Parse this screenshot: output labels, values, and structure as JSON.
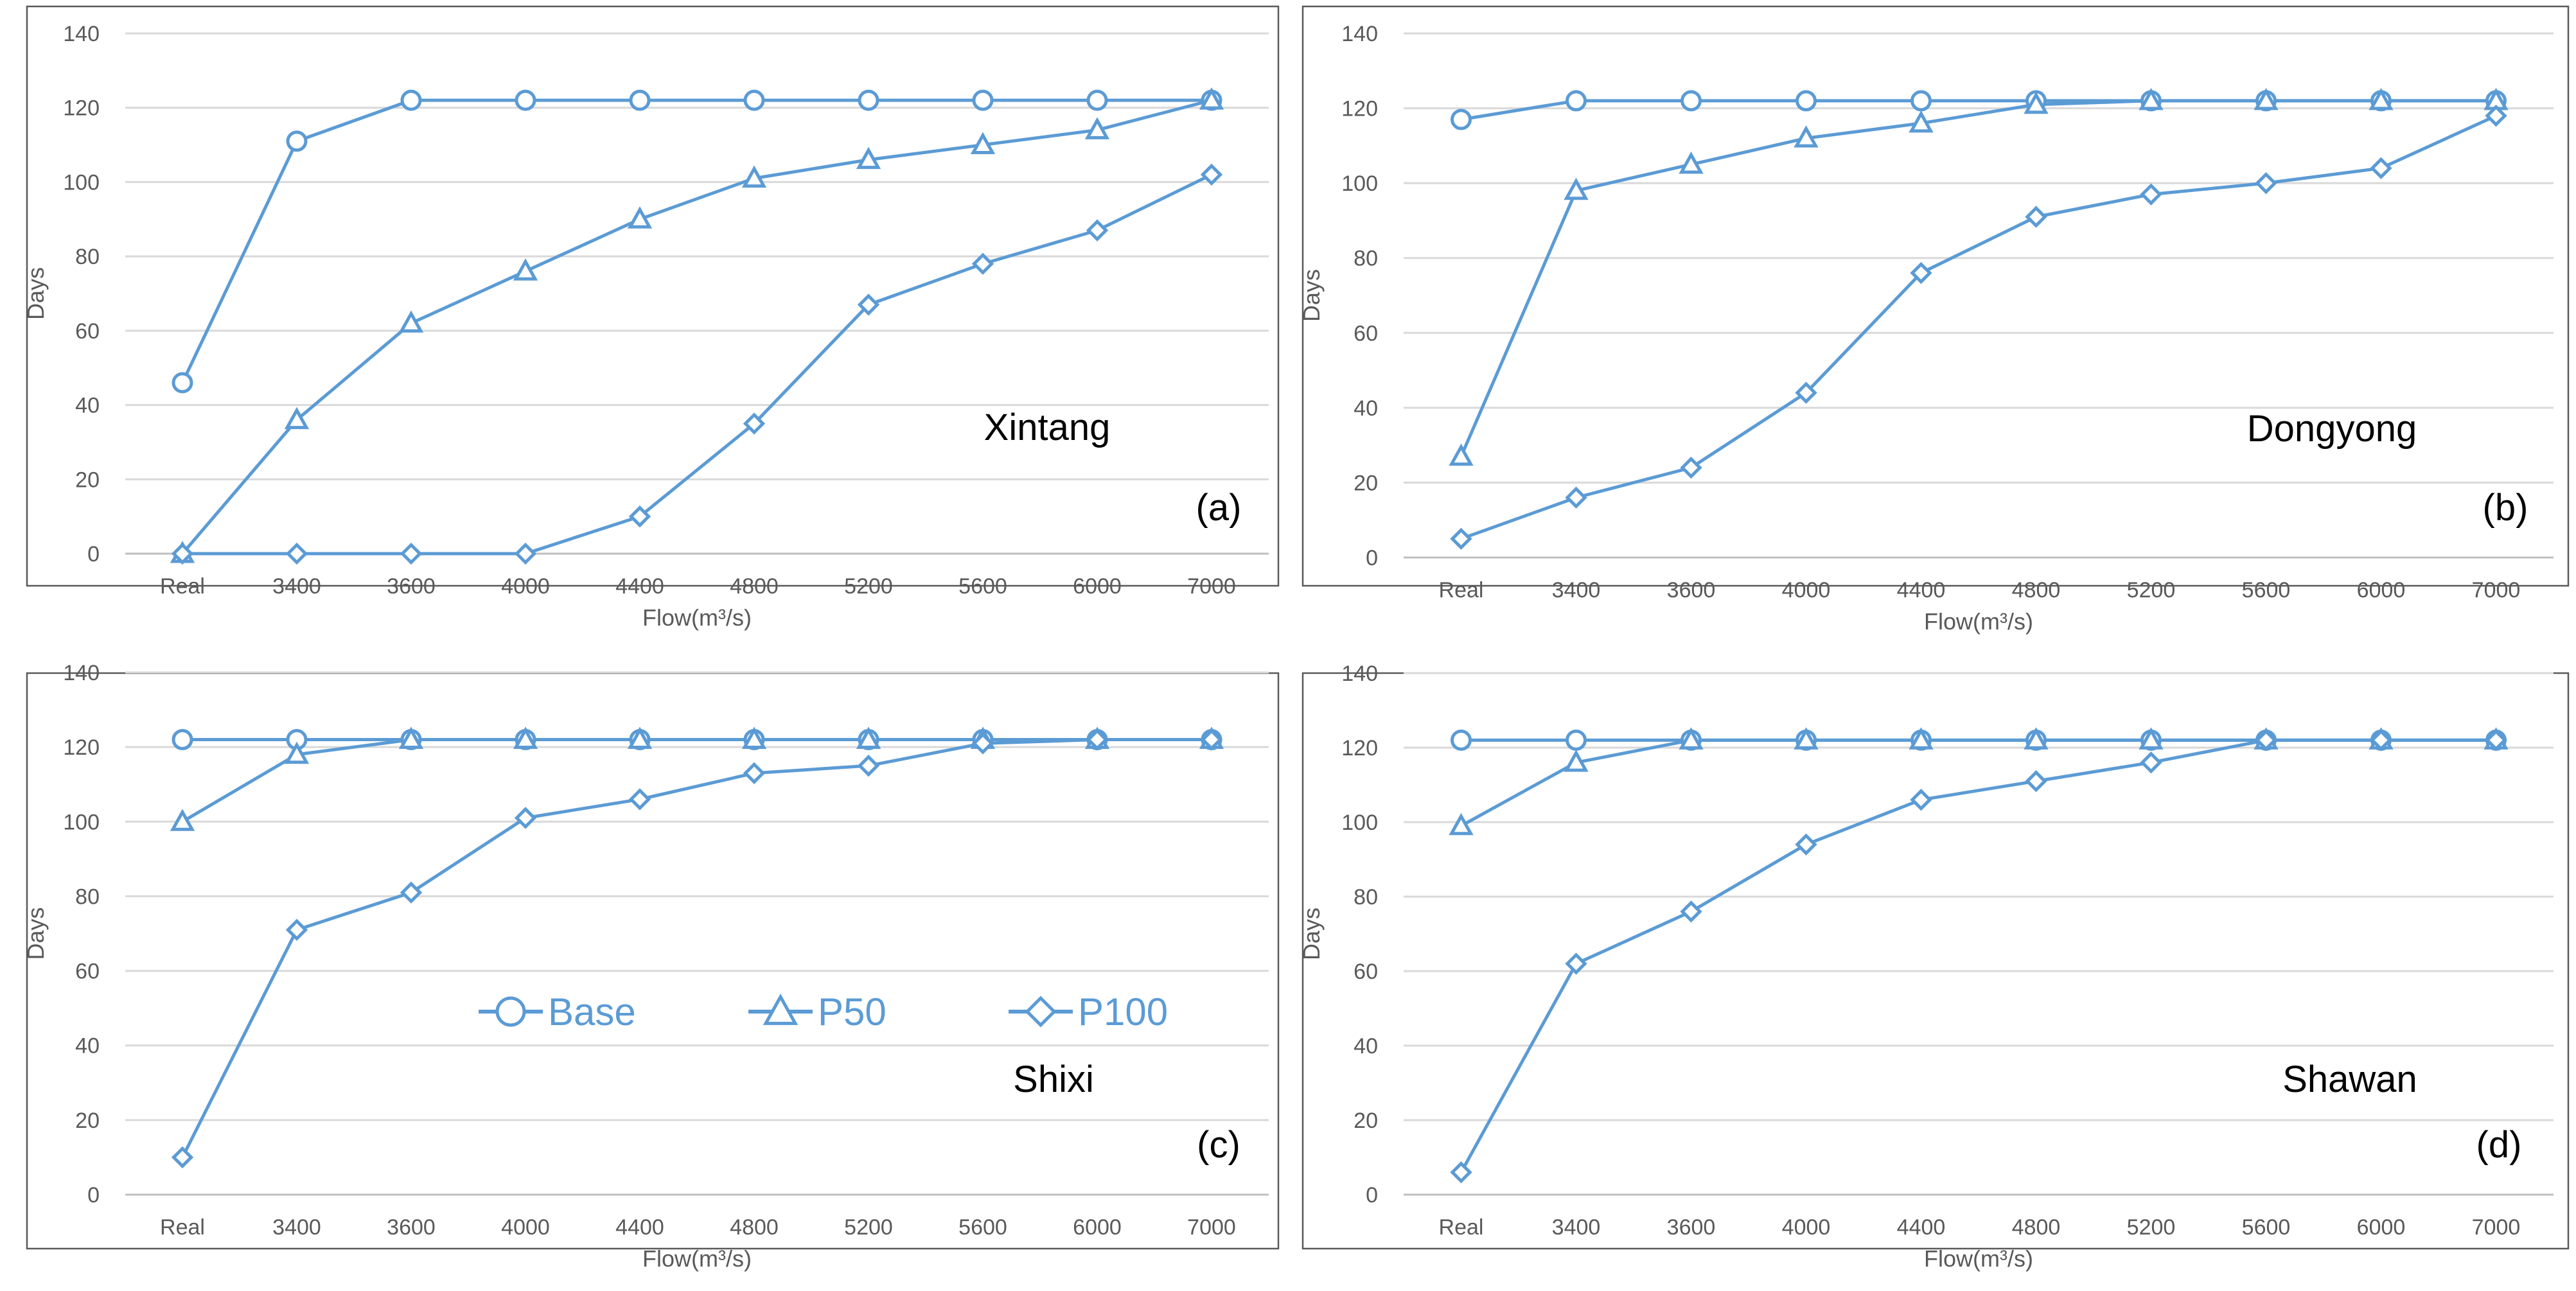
{
  "colors": {
    "series": "#5b9bd5",
    "grid": "#d9d9d9",
    "frame": "#595959",
    "text": "#595959"
  },
  "legend": [
    {
      "name": "Base",
      "marker": "circle"
    },
    {
      "name": "P50",
      "marker": "triangle"
    },
    {
      "name": "P100",
      "marker": "diamond"
    }
  ],
  "chart_data": [
    {
      "type": "line",
      "panel": "(a)",
      "site": "Xintang",
      "categories": [
        "Real",
        "3400",
        "3600",
        "4000",
        "4400",
        "4800",
        "5200",
        "5600",
        "6000",
        "7000"
      ],
      "xlabel": "Flow(m³/s)",
      "ylabel": "Days",
      "ylim": [
        0,
        140
      ],
      "yticks": [
        0,
        20,
        40,
        60,
        80,
        100,
        120,
        140
      ],
      "grid": true,
      "series": [
        {
          "name": "Base",
          "marker": "circle",
          "values": [
            46,
            111,
            122,
            122,
            122,
            122,
            122,
            122,
            122,
            122
          ]
        },
        {
          "name": "P50",
          "marker": "triangle",
          "values": [
            0,
            36,
            62,
            76,
            90,
            101,
            106,
            110,
            114,
            122
          ]
        },
        {
          "name": "P100",
          "marker": "diamond",
          "values": [
            0,
            0,
            0,
            0,
            10,
            35,
            67,
            78,
            87,
            102
          ]
        }
      ]
    },
    {
      "type": "line",
      "panel": "(b)",
      "site": "Dongyong",
      "categories": [
        "Real",
        "3400",
        "3600",
        "4000",
        "4400",
        "4800",
        "5200",
        "5600",
        "6000",
        "7000"
      ],
      "xlabel": "Flow(m³/s)",
      "ylabel": "Days",
      "ylim": [
        0,
        140
      ],
      "yticks": [
        0,
        20,
        40,
        60,
        80,
        100,
        120,
        140
      ],
      "grid": true,
      "series": [
        {
          "name": "Base",
          "marker": "circle",
          "values": [
            117,
            122,
            122,
            122,
            122,
            122,
            122,
            122,
            122,
            122
          ]
        },
        {
          "name": "P50",
          "marker": "triangle",
          "values": [
            27,
            98,
            105,
            112,
            116,
            121,
            122,
            122,
            122,
            122
          ]
        },
        {
          "name": "P100",
          "marker": "diamond",
          "values": [
            5,
            16,
            24,
            44,
            76,
            91,
            97,
            100,
            104,
            118
          ]
        }
      ]
    },
    {
      "type": "line",
      "panel": "(c)",
      "site": "Shixi",
      "categories": [
        "Real",
        "3400",
        "3600",
        "4000",
        "4400",
        "4800",
        "5200",
        "5600",
        "6000",
        "7000"
      ],
      "xlabel": "Flow(m³/s)",
      "ylabel": "Days",
      "ylim": [
        0,
        140
      ],
      "yticks": [
        0,
        20,
        40,
        60,
        80,
        100,
        120,
        140
      ],
      "grid": true,
      "series": [
        {
          "name": "Base",
          "marker": "circle",
          "values": [
            122,
            122,
            122,
            122,
            122,
            122,
            122,
            122,
            122,
            122
          ]
        },
        {
          "name": "P50",
          "marker": "triangle",
          "values": [
            100,
            118,
            122,
            122,
            122,
            122,
            122,
            122,
            122,
            122
          ]
        },
        {
          "name": "P100",
          "marker": "diamond",
          "values": [
            10,
            71,
            81,
            101,
            106,
            113,
            115,
            121,
            122,
            122
          ]
        }
      ]
    },
    {
      "type": "line",
      "panel": "(d)",
      "site": "Shawan",
      "categories": [
        "Real",
        "3400",
        "3600",
        "4000",
        "4400",
        "4800",
        "5200",
        "5600",
        "6000",
        "7000"
      ],
      "xlabel": "Flow(m³/s)",
      "ylabel": "Days",
      "ylim": [
        0,
        140
      ],
      "yticks": [
        0,
        20,
        40,
        60,
        80,
        100,
        120,
        140
      ],
      "grid": true,
      "series": [
        {
          "name": "Base",
          "marker": "circle",
          "values": [
            122,
            122,
            122,
            122,
            122,
            122,
            122,
            122,
            122,
            122
          ]
        },
        {
          "name": "P50",
          "marker": "triangle",
          "values": [
            99,
            116,
            122,
            122,
            122,
            122,
            122,
            122,
            122,
            122
          ]
        },
        {
          "name": "P100",
          "marker": "diamond",
          "values": [
            6,
            62,
            76,
            94,
            106,
            111,
            116,
            122,
            122,
            122
          ]
        }
      ]
    }
  ]
}
